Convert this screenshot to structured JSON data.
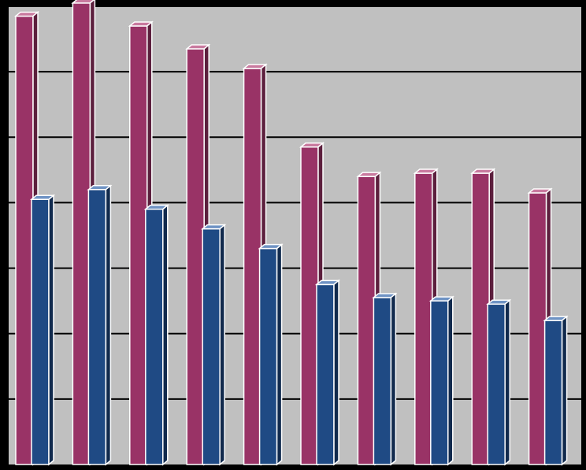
{
  "chart_data": {
    "type": "bar",
    "style": "3d-clustered-column",
    "title": "",
    "xlabel": "",
    "ylabel": "",
    "ylim": [
      0,
      7
    ],
    "gridlines": true,
    "legend": "none",
    "categories": [
      "",
      "",
      "",
      "",
      "",
      "",
      "",
      "",
      "",
      ""
    ],
    "series": [
      {
        "values": [
          6.85,
          7.05,
          6.7,
          6.35,
          6.05,
          4.85,
          4.4,
          4.45,
          4.45,
          4.15
        ]
      },
      {
        "values": [
          4.05,
          4.2,
          3.9,
          3.6,
          3.3,
          2.75,
          2.55,
          2.5,
          2.45,
          2.2
        ]
      }
    ]
  },
  "colors": {
    "background": "#000000",
    "plot_area": "#c0c0c0",
    "gridline": "#000000",
    "series_1_front": "#993366",
    "series_1_top": "#c97a9f",
    "series_1_side": "#5c1f3d",
    "series_2_front": "#1f4a84",
    "series_2_top": "#6f93c4",
    "series_2_side": "#112a4d",
    "bar_edge": "#ffffff"
  }
}
